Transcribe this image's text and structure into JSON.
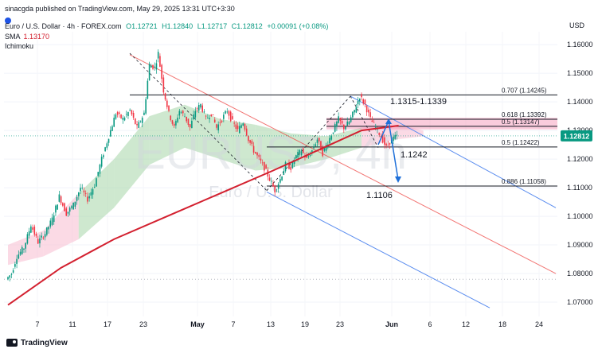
{
  "header": {
    "published": "sinacgda published on TradingView.com, May 29, 2025 13:31 UTC+3:30",
    "symbol_line": "Euro / U.S. Dollar · 4h · FOREX.com",
    "ohlc": {
      "o": "O1.12721",
      "h": "H1.12840",
      "l": "L1.12717",
      "c": "C1.12812",
      "chg": "+0.00091 (+0.08%)"
    },
    "sma_label": "SMA",
    "sma_value": "1.13170",
    "ichimoku_label": "Ichimoku",
    "currency": "USD"
  },
  "footer": {
    "brand": "TradingView"
  },
  "chart_data": {
    "type": "candlestick",
    "watermark_symbol": "EURUSD, 4h",
    "watermark_name": "Euro / U.S. Dollar",
    "ylim": [
      1.065,
      1.1645
    ],
    "y_ticks": [
      "1.16000",
      "1.15000",
      "1.14000",
      "1.13000",
      "1.12000",
      "1.11000",
      "1.10000",
      "1.09000",
      "1.08000",
      "1.07000"
    ],
    "y_tick_values": [
      1.16,
      1.15,
      1.14,
      1.13,
      1.12,
      1.11,
      1.1,
      1.09,
      1.08,
      1.07
    ],
    "x_ticks": [
      "7",
      "11",
      "17",
      "23",
      "May",
      "7",
      "13",
      "19",
      "23",
      "Jun",
      "6",
      "12",
      "18",
      "24"
    ],
    "current_price": "1.12812",
    "current_price_value": 1.12812,
    "price_path": [
      [
        0,
        1.078
      ],
      [
        3,
        1.08
      ],
      [
        6,
        1.086
      ],
      [
        10,
        1.089
      ],
      [
        14,
        1.097
      ],
      [
        18,
        1.091
      ],
      [
        22,
        1.094
      ],
      [
        26,
        1.099
      ],
      [
        30,
        1.107
      ],
      [
        34,
        1.101
      ],
      [
        38,
        1.104
      ],
      [
        42,
        1.11
      ],
      [
        46,
        1.106
      ],
      [
        50,
        1.111
      ],
      [
        54,
        1.12
      ],
      [
        58,
        1.128
      ],
      [
        62,
        1.136
      ],
      [
        66,
        1.134
      ],
      [
        70,
        1.137
      ],
      [
        74,
        1.131
      ],
      [
        78,
        1.136
      ],
      [
        81,
        1.153
      ],
      [
        84,
        1.152
      ],
      [
        86,
        1.157
      ],
      [
        89,
        1.144
      ],
      [
        92,
        1.136
      ],
      [
        95,
        1.131
      ],
      [
        98,
        1.137
      ],
      [
        101,
        1.135
      ],
      [
        104,
        1.131
      ],
      [
        107,
        1.137
      ],
      [
        110,
        1.139
      ],
      [
        113,
        1.134
      ],
      [
        116,
        1.136
      ],
      [
        119,
        1.131
      ],
      [
        122,
        1.134
      ],
      [
        125,
        1.137
      ],
      [
        128,
        1.133
      ],
      [
        131,
        1.13
      ],
      [
        134,
        1.133
      ],
      [
        137,
        1.127
      ],
      [
        140,
        1.123
      ],
      [
        143,
        1.12
      ],
      [
        146,
        1.117
      ],
      [
        149,
        1.113
      ],
      [
        152,
        1.109
      ],
      [
        155,
        1.113
      ],
      [
        158,
        1.118
      ],
      [
        161,
        1.117
      ],
      [
        164,
        1.121
      ],
      [
        167,
        1.123
      ],
      [
        170,
        1.12
      ],
      [
        173,
        1.123
      ],
      [
        176,
        1.127
      ],
      [
        179,
        1.122
      ],
      [
        182,
        1.126
      ],
      [
        185,
        1.13
      ],
      [
        188,
        1.134
      ],
      [
        191,
        1.131
      ],
      [
        194,
        1.133
      ],
      [
        197,
        1.137
      ],
      [
        200,
        1.142
      ],
      [
        203,
        1.139
      ],
      [
        206,
        1.134
      ],
      [
        209,
        1.131
      ],
      [
        212,
        1.128
      ],
      [
        215,
        1.124
      ],
      [
        218,
        1.127
      ],
      [
        221,
        1.128
      ]
    ],
    "sma_path": [
      [
        0,
        1.069
      ],
      [
        30,
        1.082
      ],
      [
        60,
        1.092
      ],
      [
        90,
        1.1
      ],
      [
        120,
        1.108
      ],
      [
        150,
        1.116
      ],
      [
        175,
        1.123
      ],
      [
        200,
        1.13
      ],
      [
        221,
        1.1317
      ]
    ],
    "cloud_path": [
      [
        0,
        1.083,
        1.09
      ],
      [
        20,
        1.086,
        1.095
      ],
      [
        40,
        1.092,
        1.108
      ],
      [
        60,
        1.103,
        1.12
      ],
      [
        80,
        1.118,
        1.135
      ],
      [
        100,
        1.124,
        1.139
      ],
      [
        120,
        1.12,
        1.134
      ],
      [
        140,
        1.116,
        1.132
      ],
      [
        160,
        1.117,
        1.129
      ],
      [
        180,
        1.12,
        1.128
      ],
      [
        200,
        1.124,
        1.131
      ],
      [
        221,
        1.127,
        1.132
      ],
      [
        235,
        1.128,
        1.13
      ]
    ],
    "fib_levels": [
      {
        "label": "0.707 (1.14245)",
        "value": 1.14245
      },
      {
        "label": "0.618 (1.13392)",
        "value": 1.13392
      },
      {
        "label": "0.5 (1.13147)",
        "value": 1.13147
      },
      {
        "label": "0.5 (1.12422)",
        "value": 1.12422
      },
      {
        "label": "0.886 (1.11058)",
        "value": 1.11058
      }
    ],
    "zone": {
      "label": "1.1315-1.1339",
      "low": 1.1315,
      "high": 1.1339
    },
    "annotations": [
      {
        "label": "1.1242",
        "value": 1.1242
      },
      {
        "label": "1.1106",
        "value": 1.1106
      }
    ],
    "trend_channel": {
      "start": [
        86,
        1.157
      ],
      "end": [
        300,
        1.089
      ]
    }
  }
}
